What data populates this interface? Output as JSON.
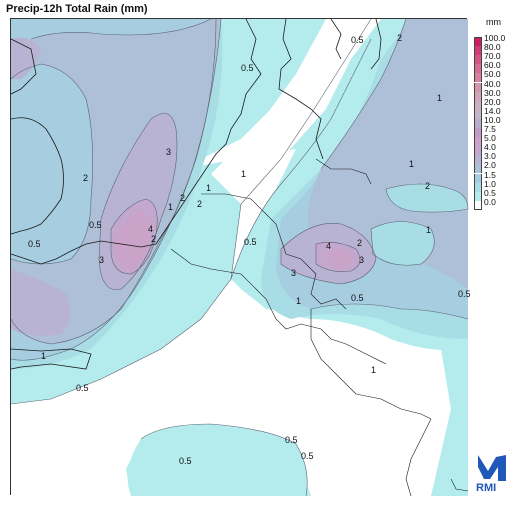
{
  "title": "Precip-12h Total Rain (mm)",
  "legend": {
    "unit": "mm",
    "levels": [
      {
        "label": "100.0",
        "color": "#cc1f62"
      },
      {
        "label": "80.0",
        "color": "#d13a72"
      },
      {
        "label": "70.0",
        "color": "#d55482"
      },
      {
        "label": "60.0",
        "color": "#d86c92"
      },
      {
        "label": "50.0",
        "color": "#d882a0"
      },
      {
        "label": "40.0",
        "color": "#d596ac"
      },
      {
        "label": "30.0",
        "color": "#d1a4b6"
      },
      {
        "label": "20.0",
        "color": "#ccb0be"
      },
      {
        "label": "14.0",
        "color": "#c6b5c6"
      },
      {
        "label": "10.0",
        "color": "#bdaccb"
      },
      {
        "label": "7.5",
        "color": "#c09dc4"
      },
      {
        "label": "5.0",
        "color": "#cba3c8"
      },
      {
        "label": "4.0",
        "color": "#c3a7cd"
      },
      {
        "label": "3.0",
        "color": "#b8b3d3"
      },
      {
        "label": "2.0",
        "color": "#aebfd8"
      },
      {
        "label": "1.5",
        "color": "#a6cde0"
      },
      {
        "label": "1.0",
        "color": "#a8dde6"
      },
      {
        "label": "0.5",
        "color": "#b4ecee"
      },
      {
        "label": "0.0",
        "color": "#ffffff"
      }
    ]
  },
  "contour_labels": [
    "0.5",
    "2",
    "0.5",
    "1",
    "2",
    "3",
    "4",
    "3",
    "2",
    "1",
    "0.5",
    "3",
    "1",
    "0.5",
    "0.5",
    "1",
    "0.5",
    "2",
    "0.5",
    "1",
    "2",
    "1",
    "2",
    "4",
    "3",
    "2",
    "1",
    "0.5",
    "1",
    "0.5",
    "0.5",
    "0.5",
    "1"
  ],
  "logo": {
    "text": "RMI"
  }
}
